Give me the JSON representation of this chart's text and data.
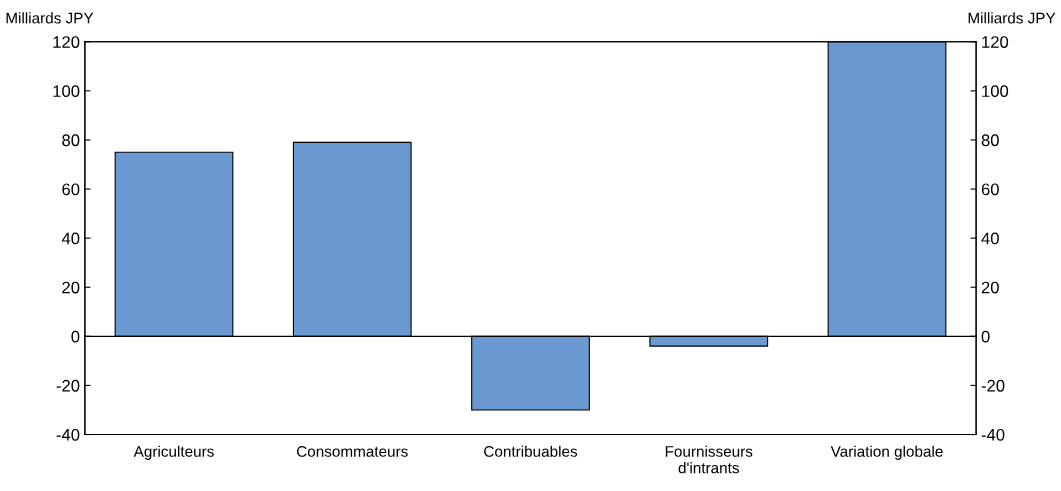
{
  "chart_data": {
    "type": "bar",
    "categories": [
      "Agriculteurs",
      "Consommateurs",
      "Contribuables",
      "Fournisseurs\nd'intrants",
      "Variation globale"
    ],
    "values": [
      75,
      79,
      -30,
      -4,
      120
    ],
    "color": "#6a98d0",
    "ylabel": "Milliards JPY",
    "y2label": "Milliards JPY",
    "ylim": [
      -40,
      120
    ],
    "yticks": [
      -40,
      -20,
      0,
      20,
      40,
      60,
      80,
      100,
      120
    ],
    "y2lim": [
      -40,
      120
    ],
    "y2ticks": [
      -40,
      -20,
      0,
      20,
      40,
      60,
      80,
      100,
      120
    ],
    "ref_lines": [
      {
        "axis": "y",
        "value": 0,
        "color": "#000000"
      }
    ],
    "grid": false,
    "legend": false
  }
}
